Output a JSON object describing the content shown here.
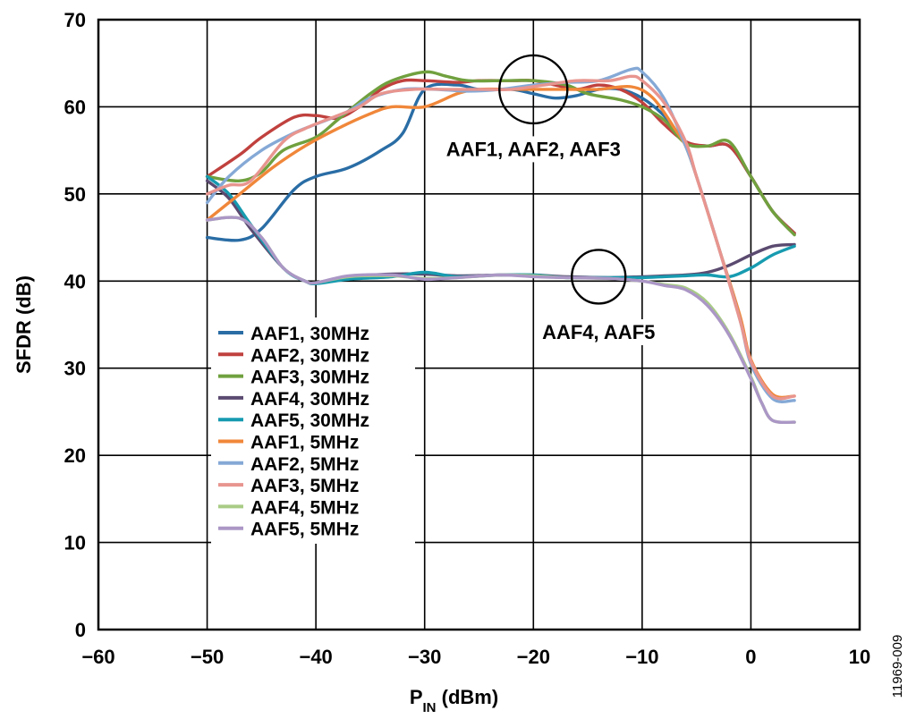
{
  "chart_data": {
    "type": "line",
    "xlabel_main": "P",
    "xlabel_sub": "IN",
    "xlabel_tail": " (dBm)",
    "ylabel": "SFDR (dB)",
    "xlim": [
      -60,
      10
    ],
    "ylim": [
      0,
      70
    ],
    "x_ticks": [
      -60,
      -50,
      -40,
      -30,
      -20,
      -10,
      0,
      10
    ],
    "x_tick_labels": [
      "−60",
      "−50",
      "−40",
      "−30",
      "−20",
      "−10",
      "0",
      "10"
    ],
    "y_ticks": [
      0,
      10,
      20,
      30,
      40,
      50,
      60,
      70
    ],
    "y_tick_labels": [
      "0",
      "10",
      "20",
      "30",
      "40",
      "50",
      "60",
      "70"
    ],
    "grid": true,
    "legend_position": "lower-left",
    "figure_id": "11969-009",
    "annotations": [
      {
        "text": "AAF1, AAF2, AAF3",
        "circle_center": [
          -20,
          62
        ],
        "label_anchor": [
          -20,
          56
        ]
      },
      {
        "text": "AAF4, AAF5",
        "circle_center": [
          -14,
          40.5
        ],
        "label_anchor": [
          -14,
          35
        ]
      }
    ],
    "series": [
      {
        "name": "AAF1, 30MHz",
        "color": "#2a6da5",
        "points": [
          [
            -50,
            45
          ],
          [
            -47,
            44.7
          ],
          [
            -45,
            46
          ],
          [
            -42,
            50.5
          ],
          [
            -40,
            52
          ],
          [
            -37,
            53
          ],
          [
            -34,
            55
          ],
          [
            -32,
            57
          ],
          [
            -30,
            62
          ],
          [
            -27,
            62.5
          ],
          [
            -25,
            62
          ],
          [
            -22,
            62
          ],
          [
            -20,
            61.5
          ],
          [
            -18,
            61
          ],
          [
            -16,
            61.3
          ],
          [
            -14,
            62
          ],
          [
            -12,
            62
          ],
          [
            -10,
            61
          ],
          [
            -8,
            59
          ],
          [
            -6,
            56
          ],
          [
            -4,
            55.5
          ],
          [
            -2,
            55.5
          ],
          [
            0,
            52
          ],
          [
            2,
            48
          ],
          [
            4,
            45.5
          ]
        ]
      },
      {
        "name": "AAF2, 30MHz",
        "color": "#c0413e",
        "points": [
          [
            -50,
            52
          ],
          [
            -47,
            54.5
          ],
          [
            -45,
            56.5
          ],
          [
            -42,
            58.8
          ],
          [
            -40,
            59
          ],
          [
            -38,
            58.7
          ],
          [
            -36,
            60
          ],
          [
            -34,
            62
          ],
          [
            -32,
            63
          ],
          [
            -30,
            63
          ],
          [
            -27,
            62.8
          ],
          [
            -25,
            63
          ],
          [
            -22,
            63
          ],
          [
            -20,
            63
          ],
          [
            -18,
            62.5
          ],
          [
            -16,
            62
          ],
          [
            -14,
            62.5
          ],
          [
            -12,
            62
          ],
          [
            -10,
            60.5
          ],
          [
            -8,
            58
          ],
          [
            -6,
            56
          ],
          [
            -4,
            55.5
          ],
          [
            -2,
            55.5
          ],
          [
            0,
            52
          ],
          [
            2,
            48
          ],
          [
            4,
            45.5
          ]
        ]
      },
      {
        "name": "AAF3, 30MHz",
        "color": "#70a03e",
        "points": [
          [
            -50,
            52
          ],
          [
            -47,
            51.5
          ],
          [
            -45,
            52.5
          ],
          [
            -43,
            55
          ],
          [
            -40,
            56.5
          ],
          [
            -38,
            58.5
          ],
          [
            -35,
            61.5
          ],
          [
            -33,
            63
          ],
          [
            -30,
            64
          ],
          [
            -28,
            63.5
          ],
          [
            -26,
            63
          ],
          [
            -23,
            63
          ],
          [
            -20,
            63
          ],
          [
            -17,
            62.5
          ],
          [
            -15,
            61.5
          ],
          [
            -12,
            60.8
          ],
          [
            -10,
            60
          ],
          [
            -8,
            58.5
          ],
          [
            -6,
            55.8
          ],
          [
            -4,
            55.5
          ],
          [
            -2,
            56
          ],
          [
            0,
            52
          ],
          [
            2,
            48
          ],
          [
            4,
            45.3
          ]
        ]
      },
      {
        "name": "AAF4, 30MHz",
        "color": "#5b4a70",
        "points": [
          [
            -50,
            51.5
          ],
          [
            -48,
            49.5
          ],
          [
            -46,
            46
          ],
          [
            -43,
            41.5
          ],
          [
            -41,
            40
          ],
          [
            -40,
            39.8
          ],
          [
            -37,
            40.5
          ],
          [
            -33,
            40.8
          ],
          [
            -30,
            40.8
          ],
          [
            -27,
            40.6
          ],
          [
            -23,
            40.7
          ],
          [
            -20,
            40.7
          ],
          [
            -17,
            40.5
          ],
          [
            -13,
            40.4
          ],
          [
            -10,
            40.5
          ],
          [
            -8,
            40.6
          ],
          [
            -6,
            40.7
          ],
          [
            -4,
            41
          ],
          [
            -2,
            41.8
          ],
          [
            0,
            43
          ],
          [
            2,
            44
          ],
          [
            4,
            44.2
          ]
        ]
      },
      {
        "name": "AAF5, 30MHz",
        "color": "#179bb0",
        "points": [
          [
            -50,
            52
          ],
          [
            -48,
            50
          ],
          [
            -46,
            46.5
          ],
          [
            -43,
            41.5
          ],
          [
            -41,
            40
          ],
          [
            -40,
            39.7
          ],
          [
            -37,
            40.2
          ],
          [
            -33,
            40.5
          ],
          [
            -30,
            41
          ],
          [
            -27,
            40.5
          ],
          [
            -23,
            40.7
          ],
          [
            -20,
            40.7
          ],
          [
            -17,
            40.4
          ],
          [
            -13,
            40.4
          ],
          [
            -10,
            40.4
          ],
          [
            -8,
            40.5
          ],
          [
            -6,
            40.6
          ],
          [
            -4,
            40.7
          ],
          [
            -2,
            40.5
          ],
          [
            0,
            41.5
          ],
          [
            2,
            43
          ],
          [
            4,
            44
          ]
        ]
      },
      {
        "name": "AAF1, 5MHz",
        "color": "#f0873a",
        "points": [
          [
            -50,
            47
          ],
          [
            -47,
            50
          ],
          [
            -44,
            53
          ],
          [
            -41,
            55.5
          ],
          [
            -38,
            57.5
          ],
          [
            -35,
            59.2
          ],
          [
            -33,
            60
          ],
          [
            -30,
            60
          ],
          [
            -27,
            61.5
          ],
          [
            -25,
            62
          ],
          [
            -22,
            62
          ],
          [
            -20,
            62
          ],
          [
            -17,
            62
          ],
          [
            -14,
            62
          ],
          [
            -11,
            62.3
          ],
          [
            -9,
            61
          ],
          [
            -7,
            57.5
          ],
          [
            -6,
            55.5
          ],
          [
            -5,
            52
          ],
          [
            -3,
            44
          ],
          [
            -1,
            36
          ],
          [
            0,
            31
          ],
          [
            2,
            27
          ],
          [
            4,
            26.8
          ]
        ]
      },
      {
        "name": "AAF2, 5MHz",
        "color": "#85a9d6",
        "points": [
          [
            -50,
            49
          ],
          [
            -48,
            52
          ],
          [
            -45,
            55
          ],
          [
            -42,
            57
          ],
          [
            -40,
            58
          ],
          [
            -37,
            59.5
          ],
          [
            -35,
            61
          ],
          [
            -32,
            62
          ],
          [
            -29,
            62
          ],
          [
            -26,
            61.8
          ],
          [
            -23,
            62
          ],
          [
            -20,
            62.5
          ],
          [
            -17,
            62.8
          ],
          [
            -14,
            63
          ],
          [
            -11,
            64.3
          ],
          [
            -10,
            64
          ],
          [
            -8,
            61
          ],
          [
            -6,
            55.5
          ],
          [
            -5,
            52
          ],
          [
            -3,
            44
          ],
          [
            -1,
            35.5
          ],
          [
            0,
            30.5
          ],
          [
            2,
            26.5
          ],
          [
            4,
            26.3
          ]
        ]
      },
      {
        "name": "AAF3, 5MHz",
        "color": "#e8958f",
        "points": [
          [
            -50,
            50
          ],
          [
            -48,
            51
          ],
          [
            -46,
            51.5
          ],
          [
            -43,
            56
          ],
          [
            -41,
            57.5
          ],
          [
            -38,
            59
          ],
          [
            -36,
            60
          ],
          [
            -34,
            61.5
          ],
          [
            -31,
            62
          ],
          [
            -28,
            62
          ],
          [
            -25,
            62
          ],
          [
            -22,
            62
          ],
          [
            -19,
            62.5
          ],
          [
            -16,
            63
          ],
          [
            -13,
            63
          ],
          [
            -11,
            63.5
          ],
          [
            -10,
            63
          ],
          [
            -8,
            60.5
          ],
          [
            -6,
            56
          ],
          [
            -5,
            52
          ],
          [
            -3,
            44
          ],
          [
            -1,
            35.5
          ],
          [
            0,
            30.8
          ],
          [
            2,
            26.8
          ],
          [
            4,
            26.8
          ]
        ]
      },
      {
        "name": "AAF4, 5MHz",
        "color": "#a9cc86",
        "points": [
          [
            -50,
            47
          ],
          [
            -47,
            47.2
          ],
          [
            -45,
            45
          ],
          [
            -43,
            41.5
          ],
          [
            -41,
            40
          ],
          [
            -40,
            39.8
          ],
          [
            -37,
            40.5
          ],
          [
            -33,
            40.6
          ],
          [
            -30,
            40.3
          ],
          [
            -27,
            40.4
          ],
          [
            -23,
            40.7
          ],
          [
            -20,
            40.6
          ],
          [
            -17,
            40.4
          ],
          [
            -13,
            40.3
          ],
          [
            -10,
            40
          ],
          [
            -8,
            39.6
          ],
          [
            -6,
            39.2
          ],
          [
            -4,
            37.5
          ],
          [
            -2,
            34
          ],
          [
            0,
            29
          ],
          [
            1,
            26
          ],
          [
            2,
            24
          ],
          [
            4,
            23.8
          ]
        ]
      },
      {
        "name": "AAF5, 5MHz",
        "color": "#ab97c6",
        "points": [
          [
            -50,
            47
          ],
          [
            -47,
            47.2
          ],
          [
            -45,
            45
          ],
          [
            -43,
            41.5
          ],
          [
            -41,
            40
          ],
          [
            -40,
            39.8
          ],
          [
            -37,
            40.6
          ],
          [
            -33,
            40.7
          ],
          [
            -30,
            40.2
          ],
          [
            -27,
            40.4
          ],
          [
            -23,
            40.7
          ],
          [
            -20,
            40.5
          ],
          [
            -17,
            40.4
          ],
          [
            -13,
            40.3
          ],
          [
            -10,
            40
          ],
          [
            -8,
            39.5
          ],
          [
            -6,
            39
          ],
          [
            -4,
            37.2
          ],
          [
            -2,
            33.8
          ],
          [
            0,
            28.8
          ],
          [
            1,
            26
          ],
          [
            2,
            24
          ],
          [
            4,
            23.8
          ]
        ]
      }
    ]
  }
}
